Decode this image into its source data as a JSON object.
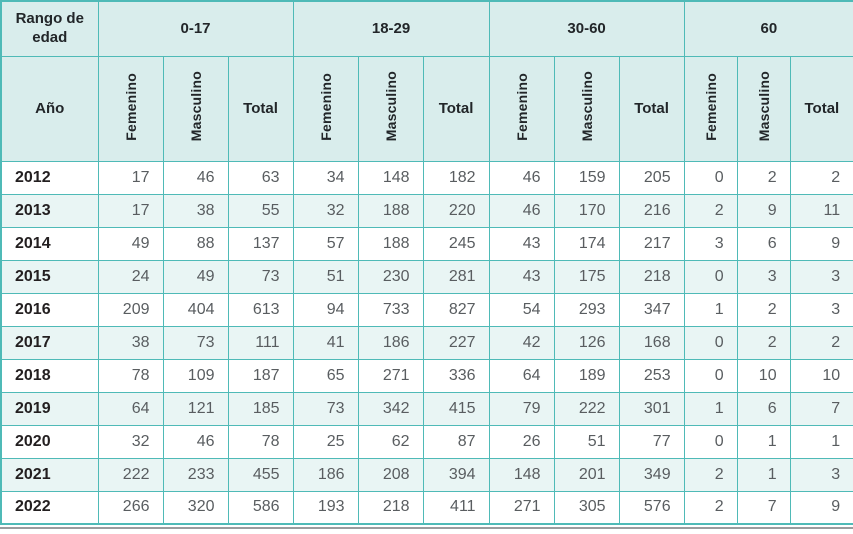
{
  "table": {
    "corner_label": "Rango de edad",
    "year_label": "Año",
    "groups": [
      {
        "label": "0-17"
      },
      {
        "label": "18-29"
      },
      {
        "label": "30-60"
      },
      {
        "label": "60"
      }
    ],
    "sub_labels": {
      "f": "Femenino",
      "m": "Masculino",
      "t": "Total"
    },
    "rows": [
      {
        "year": "2012",
        "values": [
          17,
          46,
          63,
          34,
          148,
          182,
          46,
          159,
          205,
          0,
          2,
          2
        ]
      },
      {
        "year": "2013",
        "values": [
          17,
          38,
          55,
          32,
          188,
          220,
          46,
          170,
          216,
          2,
          9,
          11
        ]
      },
      {
        "year": "2014",
        "values": [
          49,
          88,
          137,
          57,
          188,
          245,
          43,
          174,
          217,
          3,
          6,
          9
        ]
      },
      {
        "year": "2015",
        "values": [
          24,
          49,
          73,
          51,
          230,
          281,
          43,
          175,
          218,
          0,
          3,
          3
        ]
      },
      {
        "year": "2016",
        "values": [
          209,
          404,
          613,
          94,
          733,
          827,
          54,
          293,
          347,
          1,
          2,
          3
        ]
      },
      {
        "year": "2017",
        "values": [
          38,
          73,
          111,
          41,
          186,
          227,
          42,
          126,
          168,
          0,
          2,
          2
        ]
      },
      {
        "year": "2018",
        "values": [
          78,
          109,
          187,
          65,
          271,
          336,
          64,
          189,
          253,
          0,
          10,
          10
        ]
      },
      {
        "year": "2019",
        "values": [
          64,
          121,
          185,
          73,
          342,
          415,
          79,
          222,
          301,
          1,
          6,
          7
        ]
      },
      {
        "year": "2020",
        "values": [
          32,
          46,
          78,
          25,
          62,
          87,
          26,
          51,
          77,
          0,
          1,
          1
        ]
      },
      {
        "year": "2021",
        "values": [
          222,
          233,
          455,
          186,
          208,
          394,
          148,
          201,
          349,
          2,
          1,
          3
        ]
      },
      {
        "year": "2022",
        "values": [
          266,
          320,
          586,
          193,
          218,
          411,
          271,
          305,
          576,
          2,
          7,
          9
        ]
      }
    ]
  },
  "colors": {
    "border_teal": "#4fbab7",
    "header_bg": "#d9edec",
    "alt_row_bg": "#e9f5f4",
    "dark_text": "#222629",
    "year_text": "#231f20",
    "number_text": "#595d60",
    "bottom_rule": "#9a9c9e"
  }
}
